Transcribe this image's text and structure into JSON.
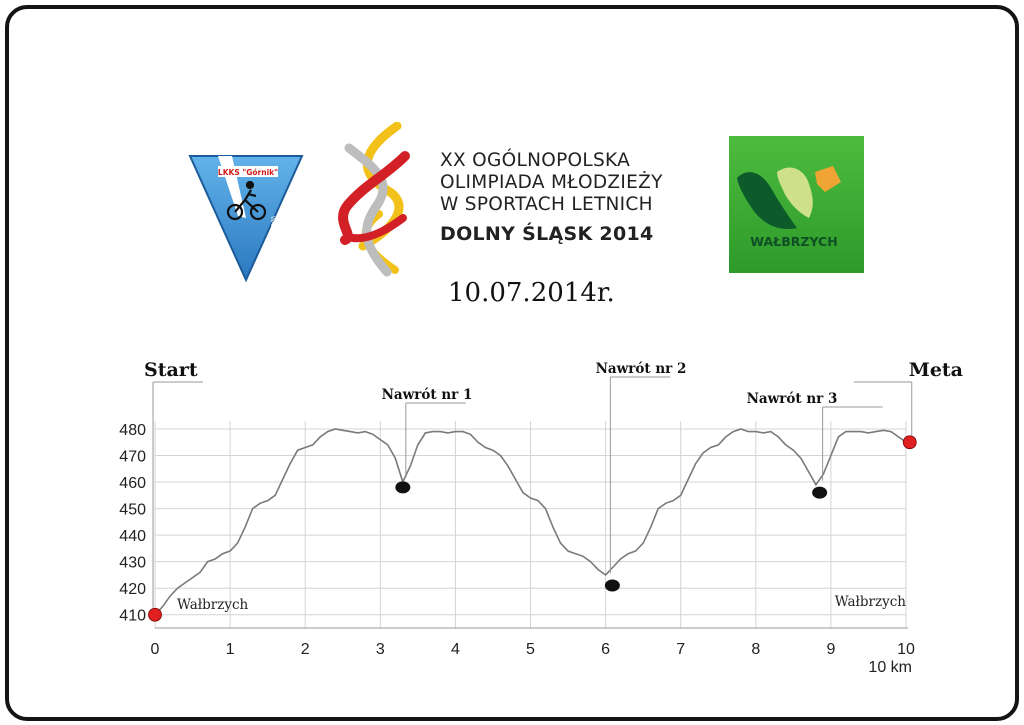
{
  "header": {
    "club_logo_text": "LKKS \"Górnik\"",
    "club_logo_vertical": "WAŁBRZYCH",
    "event_lines": [
      "XX OGÓLNOPOLSKA",
      "OLIMPIADA MŁODZIEŻY",
      "W SPORTACH LETNICH"
    ],
    "event_bold": "DOLNY ŚLĄSK 2014",
    "city_logo_text": "WAŁBRZYCH",
    "date": "10.07.2014r."
  },
  "colors": {
    "profile_line": "#7a7a7a",
    "grid": "#d4d4d4",
    "start_end_marker": "#e02020",
    "turn_marker": "#111111",
    "logo_blue": "#3a8fd0",
    "logo_green": "#3aae35"
  },
  "chart_data": {
    "type": "line",
    "title": "",
    "xlabel": "10 km",
    "ylabel": "",
    "xlim": [
      0,
      10
    ],
    "ylim": [
      405,
      483
    ],
    "x_ticks": [
      0,
      1,
      2,
      3,
      4,
      5,
      6,
      7,
      8,
      9,
      10
    ],
    "y_ticks": [
      410,
      420,
      430,
      440,
      450,
      460,
      470,
      480
    ],
    "grid": true,
    "series": [
      {
        "x": [
          0,
          0.1,
          0.2,
          0.3,
          0.4,
          0.5,
          0.6,
          0.7,
          0.8,
          0.9,
          1.0,
          1.1,
          1.2,
          1.3,
          1.4,
          1.5,
          1.6,
          1.7,
          1.8,
          1.9,
          2.0,
          2.1,
          2.2,
          2.3,
          2.4,
          2.5,
          2.6,
          2.7,
          2.8,
          2.9,
          3.0,
          3.1,
          3.2,
          3.3,
          3.4,
          3.5,
          3.6,
          3.7,
          3.8,
          3.9,
          4.0,
          4.1,
          4.2,
          4.3,
          4.4,
          4.5,
          4.6,
          4.7,
          4.8,
          4.9,
          5.0,
          5.1,
          5.2,
          5.3,
          5.4,
          5.5,
          5.6,
          5.7,
          5.8,
          5.9,
          6.0,
          6.1,
          6.2,
          6.3,
          6.4,
          6.5,
          6.6,
          6.7,
          6.8,
          6.9,
          7.0,
          7.1,
          7.2,
          7.3,
          7.4,
          7.5,
          7.6,
          7.7,
          7.8,
          7.9,
          8.0,
          8.1,
          8.2,
          8.3,
          8.4,
          8.5,
          8.6,
          8.7,
          8.8,
          8.9,
          9.0,
          9.1,
          9.2,
          9.3,
          9.4,
          9.5,
          9.6,
          9.7,
          9.8,
          9.9,
          10.0
        ],
        "y": [
          410,
          413,
          417,
          420,
          422,
          424,
          426,
          430,
          431,
          433,
          434,
          437,
          443,
          450,
          452,
          453,
          455,
          461,
          467,
          472,
          473,
          474,
          477,
          479,
          480,
          479.5,
          479,
          478.5,
          479,
          478,
          476,
          474,
          469,
          460,
          466,
          474,
          478.5,
          479,
          479,
          478.5,
          479,
          479,
          478,
          475,
          473,
          472,
          470,
          466,
          461,
          456,
          454,
          453,
          450,
          443,
          437,
          434,
          433,
          432,
          430,
          427,
          425,
          428,
          431,
          433,
          434,
          437,
          443,
          450,
          452,
          453,
          455,
          461,
          467,
          471,
          473,
          474,
          477,
          479,
          480,
          479,
          479,
          478.5,
          479,
          477,
          474,
          472,
          469,
          464,
          459,
          463,
          470,
          477,
          479,
          479,
          479,
          478.5,
          479,
          479.5,
          479,
          477,
          475
        ]
      }
    ],
    "markers": [
      {
        "type": "endpoint",
        "x": 0,
        "y": 410,
        "label": "Start",
        "place": "Wałbrzych"
      },
      {
        "type": "turn",
        "x": 3.3,
        "y": 458,
        "label": "Nawrót nr 1"
      },
      {
        "type": "turn",
        "x": 6.05,
        "y": 421,
        "label": "Nawrót nr 2"
      },
      {
        "type": "turn",
        "x": 8.85,
        "y": 456,
        "label": "Nawrót nr 3"
      },
      {
        "type": "endpoint",
        "x": 10.05,
        "y": 475,
        "label": "Meta",
        "place": "Wałbrzych"
      }
    ]
  }
}
